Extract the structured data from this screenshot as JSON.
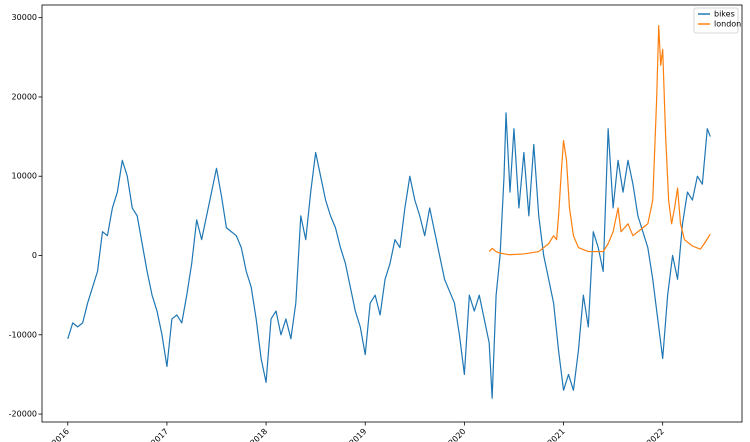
{
  "chart_data": {
    "type": "line",
    "xlim": [
      2015.74,
      2022.8
    ],
    "xticks": [
      2016,
      2017,
      2018,
      2019,
      2020,
      2021,
      2022
    ],
    "ylim": [
      -21000,
      31600
    ],
    "yticks": [
      -20000,
      -10000,
      0,
      10000,
      20000,
      30000
    ],
    "legend": "upper right",
    "series": [
      {
        "name": "bikes",
        "color": "#1f77b4",
        "x": [
          2016.0,
          2016.05,
          2016.1,
          2016.15,
          2016.2,
          2016.25,
          2016.3,
          2016.35,
          2016.4,
          2016.45,
          2016.5,
          2016.55,
          2016.6,
          2016.65,
          2016.7,
          2016.75,
          2016.8,
          2016.85,
          2016.9,
          2016.95,
          2017.0,
          2017.05,
          2017.1,
          2017.15,
          2017.2,
          2017.25,
          2017.3,
          2017.35,
          2017.4,
          2017.45,
          2017.5,
          2017.55,
          2017.6,
          2017.65,
          2017.7,
          2017.75,
          2017.8,
          2017.85,
          2017.9,
          2017.95,
          2018.0,
          2018.05,
          2018.1,
          2018.15,
          2018.2,
          2018.25,
          2018.3,
          2018.35,
          2018.4,
          2018.45,
          2018.5,
          2018.55,
          2018.6,
          2018.65,
          2018.7,
          2018.75,
          2018.8,
          2018.85,
          2018.9,
          2018.95,
          2019.0,
          2019.05,
          2019.1,
          2019.15,
          2019.2,
          2019.25,
          2019.3,
          2019.35,
          2019.4,
          2019.45,
          2019.5,
          2019.55,
          2019.6,
          2019.65,
          2019.7,
          2019.75,
          2019.8,
          2019.85,
          2019.9,
          2019.95,
          2020.0,
          2020.05,
          2020.1,
          2020.15,
          2020.2,
          2020.25,
          2020.28,
          2020.32,
          2020.36,
          2020.4,
          2020.42,
          2020.46,
          2020.5,
          2020.55,
          2020.6,
          2020.65,
          2020.7,
          2020.75,
          2020.8,
          2020.85,
          2020.9,
          2020.95,
          2021.0,
          2021.05,
          2021.1,
          2021.15,
          2021.2,
          2021.25,
          2021.3,
          2021.35,
          2021.4,
          2021.45,
          2021.5,
          2021.55,
          2021.6,
          2021.65,
          2021.7,
          2021.75,
          2021.8,
          2021.85,
          2021.9,
          2021.95,
          2022.0,
          2022.05,
          2022.1,
          2022.15,
          2022.2,
          2022.25,
          2022.3,
          2022.35,
          2022.4,
          2022.45,
          2022.48
        ],
        "values": [
          -10500,
          -8500,
          -9000,
          -8500,
          -6000,
          -4000,
          -2000,
          3000,
          2500,
          6000,
          8000,
          12000,
          10000,
          6000,
          5000,
          1500,
          -2000,
          -5000,
          -7000,
          -10000,
          -14000,
          -8000,
          -7500,
          -8500,
          -5000,
          -1000,
          4500,
          2000,
          5000,
          8000,
          11000,
          7500,
          3500,
          3000,
          2500,
          1000,
          -2000,
          -4000,
          -8000,
          -13000,
          -16000,
          -8000,
          -7000,
          -10000,
          -8000,
          -10500,
          -6000,
          5000,
          2000,
          8000,
          13000,
          10000,
          7000,
          5000,
          3500,
          1000,
          -1000,
          -4000,
          -7000,
          -9000,
          -12500,
          -6000,
          -5000,
          -7500,
          -3000,
          -1000,
          2000,
          1000,
          6000,
          10000,
          7000,
          5000,
          2500,
          6000,
          3000,
          0,
          -3000,
          -4500,
          -6000,
          -10000,
          -15000,
          -5000,
          -7000,
          -5000,
          -8000,
          -11000,
          -18000,
          -5000,
          0,
          10000,
          18000,
          8000,
          16000,
          6000,
          13000,
          5000,
          14000,
          5000,
          0,
          -3000,
          -6000,
          -12000,
          -17000,
          -15000,
          -17000,
          -12000,
          -5000,
          -9000,
          3000,
          1000,
          -2000,
          16000,
          6000,
          12000,
          8000,
          12000,
          9000,
          5000,
          3000,
          1000,
          -3000,
          -8000,
          -13000,
          -5000,
          0,
          -3000,
          4000,
          8000,
          7000,
          10000,
          9000,
          16000,
          15000
        ]
      },
      {
        "name": "london",
        "color": "#ff7f0e",
        "x": [
          2020.25,
          2020.28,
          2020.32,
          2020.36,
          2020.45,
          2020.6,
          2020.75,
          2020.85,
          2020.9,
          2020.93,
          2020.95,
          2020.98,
          2021.0,
          2021.03,
          2021.06,
          2021.1,
          2021.15,
          2021.25,
          2021.4,
          2021.45,
          2021.5,
          2021.55,
          2021.58,
          2021.65,
          2021.7,
          2021.75,
          2021.8,
          2021.85,
          2021.9,
          2021.94,
          2021.96,
          2021.98,
          2022.0,
          2022.03,
          2022.06,
          2022.09,
          2022.12,
          2022.15,
          2022.18,
          2022.22,
          2022.3,
          2022.38,
          2022.42,
          2022.48
        ],
        "values": [
          500,
          900,
          500,
          300,
          100,
          200,
          500,
          1500,
          2500,
          2000,
          5000,
          11000,
          14500,
          12000,
          6000,
          2500,
          1000,
          500,
          500,
          1500,
          3000,
          6000,
          3000,
          4000,
          2500,
          3000,
          3500,
          4000,
          7000,
          20000,
          29000,
          24000,
          26000,
          15000,
          7000,
          4000,
          6000,
          8500,
          4000,
          2000,
          1200,
          800,
          1500,
          2700
        ]
      }
    ]
  }
}
